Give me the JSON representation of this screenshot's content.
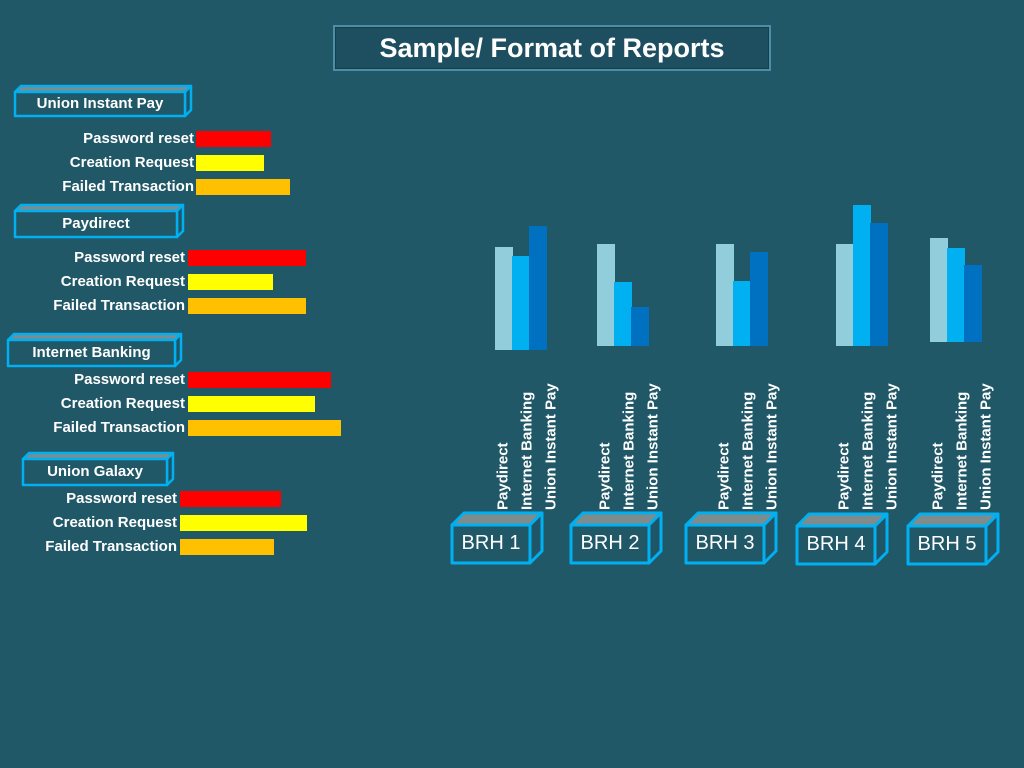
{
  "title": "Sample/ Format of Reports",
  "colors": {
    "background": "#215868",
    "password_reset": "#ff0000",
    "creation_request": "#ffff00",
    "failed_transaction": "#ffc000",
    "paydirect": "#92cddc",
    "internet_banking": "#00b0f0",
    "union_instant_pay": "#0070c0",
    "box_outline": "#00b0f0"
  },
  "chart_data": [
    {
      "type": "bar",
      "orientation": "horizontal",
      "title": "Union Instant Pay",
      "categories": [
        "Password reset",
        "Creation Request",
        "Failed Transaction"
      ],
      "values": [
        3.2,
        2.9,
        4.0
      ],
      "axis": "none"
    },
    {
      "type": "bar",
      "orientation": "horizontal",
      "title": "Paydirect",
      "categories": [
        "Password reset",
        "Creation Request",
        "Failed Transaction"
      ],
      "values": [
        5.0,
        3.6,
        5.0
      ],
      "axis": "none"
    },
    {
      "type": "bar",
      "orientation": "horizontal",
      "title": "Internet Banking",
      "categories": [
        "Password reset",
        "Creation Request",
        "Failed Transaction"
      ],
      "values": [
        6.1,
        5.4,
        6.5
      ],
      "axis": "none"
    },
    {
      "type": "bar",
      "orientation": "horizontal",
      "title": "Union Galaxy",
      "categories": [
        "Password reset",
        "Creation Request",
        "Failed Transaction"
      ],
      "values": [
        4.3,
        5.4,
        4.0
      ],
      "axis": "none"
    },
    {
      "type": "bar",
      "orientation": "vertical",
      "categories": [
        "BRH 1",
        "BRH 2",
        "BRH 3",
        "BRH 4",
        "BRH 5"
      ],
      "series": [
        {
          "name": "Paydirect",
          "values": [
            10.3,
            10.2,
            10.2,
            10.2,
            10.4
          ]
        },
        {
          "name": "Internet Banking",
          "values": [
            9.4,
            6.4,
            6.5,
            14.1,
            9.4
          ]
        },
        {
          "name": "Union Instant Pay",
          "values": [
            12.4,
            3.9,
            9.4,
            12.3,
            7.7
          ]
        }
      ],
      "axis": "none",
      "grid": false
    }
  ]
}
